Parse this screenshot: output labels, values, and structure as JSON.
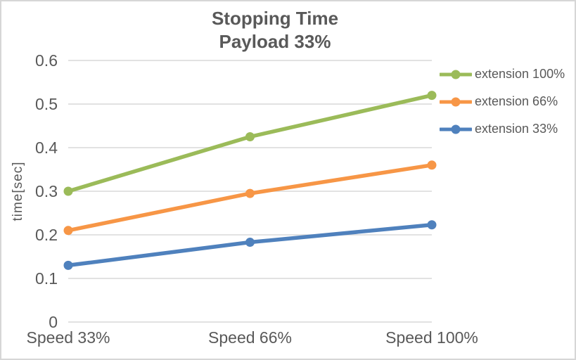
{
  "colors": {
    "text": "#595959",
    "gridline": "#d9d9d9",
    "frame_border": "#d6d6d6",
    "background": "#ffffff"
  },
  "chart_data": {
    "type": "line",
    "title_lines": [
      "Stopping Time",
      "Payload 33%"
    ],
    "title": "Stopping Time Payload 33%",
    "xlabel": "",
    "ylabel": "time[sec]",
    "categories": [
      "Speed 33%",
      "Speed 66%",
      "Speed 100%"
    ],
    "series": [
      {
        "name": "extension 100%",
        "color": "#9bbb59",
        "values": [
          0.3,
          0.425,
          0.52
        ]
      },
      {
        "name": "extension 66%",
        "color": "#f79646",
        "values": [
          0.21,
          0.295,
          0.36
        ]
      },
      {
        "name": "extension 33%",
        "color": "#4f81bd",
        "values": [
          0.13,
          0.183,
          0.223
        ]
      }
    ],
    "ylim": [
      0,
      0.6
    ],
    "ytick_labels": [
      "0",
      "0.1",
      "0.2",
      "0.3",
      "0.4",
      "0.5",
      "0.6"
    ],
    "grid": true,
    "legend_position": "right",
    "marker": "circle"
  }
}
